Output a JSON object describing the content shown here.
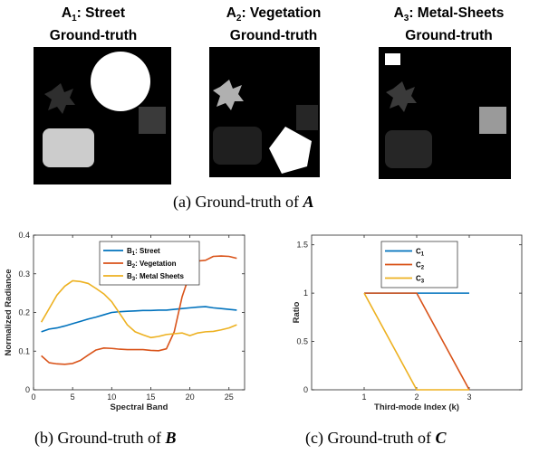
{
  "panel_a": {
    "titles": [
      {
        "prefix": "A",
        "sub": "1",
        "name": ": Street"
      },
      {
        "prefix": "A",
        "sub": "2",
        "name": ": Vegetation"
      },
      {
        "prefix": "A",
        "sub": "3",
        "name": ": Metal-Sheets"
      }
    ],
    "subtitle": "Ground-truth",
    "caption_text": "(a) Ground-truth of ",
    "caption_symbol": "A"
  },
  "panel_b": {
    "caption_text": "(b) Ground-truth of ",
    "caption_symbol": "B"
  },
  "panel_c": {
    "caption_text": "(c) Ground-truth of ",
    "caption_symbol": "C"
  },
  "colors": {
    "blue": "#0072BD",
    "orange": "#D95319",
    "yellow": "#EDB120"
  },
  "chart_data": [
    {
      "type": "line",
      "xlabel": "Spectral Band",
      "ylabel": "Normalized Radiance",
      "xlim": [
        0,
        27
      ],
      "ylim": [
        0,
        0.4
      ],
      "xticks": [
        0,
        5,
        10,
        15,
        20,
        25
      ],
      "yticks": [
        0,
        0.1,
        0.2,
        0.3,
        0.4
      ],
      "legend_position": "top-center",
      "x": [
        1,
        2,
        3,
        4,
        5,
        6,
        7,
        8,
        9,
        10,
        11,
        12,
        13,
        14,
        15,
        16,
        17,
        18,
        19,
        20,
        21,
        22,
        23,
        24,
        25,
        26
      ],
      "series": [
        {
          "name_prefix": "B",
          "name_sub": "1",
          "name_rest": ": Street",
          "color": "#0072BD",
          "values": [
            0.15,
            0.157,
            0.16,
            0.165,
            0.171,
            0.177,
            0.183,
            0.188,
            0.194,
            0.2,
            0.202,
            0.203,
            0.204,
            0.205,
            0.205,
            0.206,
            0.206,
            0.208,
            0.21,
            0.212,
            0.214,
            0.215,
            0.212,
            0.21,
            0.208,
            0.206
          ]
        },
        {
          "name_prefix": "B",
          "name_sub": "2",
          "name_rest": ": Vegetation",
          "color": "#D95319",
          "values": [
            0.088,
            0.07,
            0.067,
            0.066,
            0.068,
            0.076,
            0.09,
            0.103,
            0.108,
            0.107,
            0.105,
            0.104,
            0.104,
            0.104,
            0.102,
            0.101,
            0.106,
            0.15,
            0.24,
            0.3,
            0.333,
            0.335,
            0.345,
            0.346,
            0.345,
            0.34
          ]
        },
        {
          "name_prefix": "B",
          "name_sub": "3",
          "name_rest": ": Metal Sheets",
          "color": "#EDB120",
          "values": [
            0.175,
            0.21,
            0.245,
            0.268,
            0.282,
            0.28,
            0.275,
            0.262,
            0.248,
            0.228,
            0.198,
            0.168,
            0.15,
            0.142,
            0.135,
            0.138,
            0.143,
            0.145,
            0.147,
            0.14,
            0.147,
            0.15,
            0.151,
            0.155,
            0.16,
            0.168
          ]
        }
      ]
    },
    {
      "type": "line",
      "xlabel": "Third-mode Index (k)",
      "ylabel": "Ratio",
      "xlim": [
        0,
        4
      ],
      "ylim": [
        0,
        1.6
      ],
      "xticks": [
        1,
        2,
        3
      ],
      "yticks": [
        0,
        0.5,
        1,
        1.5
      ],
      "legend_position": "top-center",
      "x": [
        1,
        2,
        3
      ],
      "series": [
        {
          "name_prefix": "C",
          "name_sub": "1",
          "name_rest": "",
          "color": "#0072BD",
          "values": [
            1,
            1,
            1
          ]
        },
        {
          "name_prefix": "C",
          "name_sub": "2",
          "name_rest": "",
          "color": "#D95319",
          "values": [
            1,
            1,
            0
          ]
        },
        {
          "name_prefix": "C",
          "name_sub": "3",
          "name_rest": "",
          "color": "#EDB120",
          "values": [
            1,
            0,
            0
          ]
        }
      ]
    }
  ]
}
